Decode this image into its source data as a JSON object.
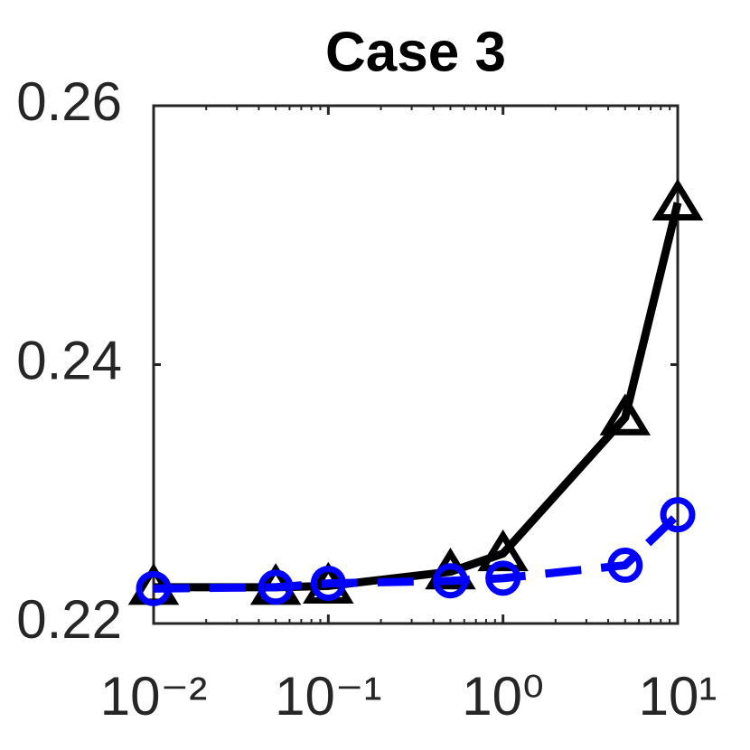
{
  "chart_data": {
    "type": "line",
    "title": "Case 3",
    "x": [
      0.01,
      0.05,
      0.1,
      0.5,
      1,
      5,
      10
    ],
    "xscale": "log",
    "series": [
      {
        "color": "#000000",
        "marker": "triangle",
        "linestyle": "solid",
        "values": [
          0.2228,
          0.2228,
          0.2229,
          0.224,
          0.2254,
          0.2359,
          0.2525
        ]
      },
      {
        "color": "#0000ff",
        "marker": "circle",
        "linestyle": "dashed",
        "values": [
          0.2227,
          0.2228,
          0.2231,
          0.2233,
          0.2235,
          0.2245,
          0.2284
        ]
      }
    ],
    "xlim": [
      0.01,
      10
    ],
    "xticks": [
      {
        "value": 0.01,
        "label": "10⁻²"
      },
      {
        "value": 0.1,
        "label": "10⁻¹"
      },
      {
        "value": 1,
        "label": "10⁰"
      },
      {
        "value": 10,
        "label": "10¹"
      }
    ],
    "ylim": [
      0.22,
      0.26
    ],
    "yticks": [
      0.22,
      0.24,
      0.26
    ],
    "grid": false
  }
}
